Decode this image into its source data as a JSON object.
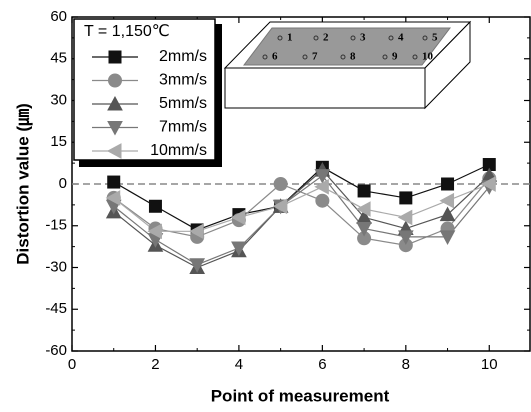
{
  "chart_data": {
    "type": "line",
    "xlabel": "Point of measurement",
    "ylabel": "Distortion value (㎛)",
    "legend_title": "T = 1,150℃",
    "x": [
      1,
      2,
      3,
      4,
      5,
      6,
      7,
      8,
      9,
      10
    ],
    "series": [
      {
        "name": "2mm/s",
        "color": "#111111",
        "marker": "square",
        "values": [
          0.7,
          -8,
          -16.5,
          -11,
          -8,
          6,
          -2.5,
          -5,
          0,
          7
        ]
      },
      {
        "name": "3mm/s",
        "color": "#8a8a8a",
        "marker": "circle",
        "values": [
          -5,
          -16,
          -19,
          -13,
          0,
          -6,
          -19.5,
          -22,
          -16,
          2
        ]
      },
      {
        "name": "5mm/s",
        "color": "#555555",
        "marker": "triangle-up",
        "values": [
          -10,
          -22,
          -30,
          -24,
          -8,
          5,
          -12,
          -16,
          -11,
          3
        ]
      },
      {
        "name": "7mm/s",
        "color": "#777777",
        "marker": "triangle-down",
        "values": [
          -8,
          -20,
          -29,
          -23,
          -8,
          3,
          -16,
          -19,
          -19,
          -1
        ]
      },
      {
        "name": "10mm/s",
        "color": "#aaaaaa",
        "marker": "triangle-left",
        "values": [
          -5,
          -17,
          -17,
          -12,
          -8,
          -1,
          -9,
          -12,
          -6,
          0
        ]
      }
    ],
    "xlim": [
      0,
      11
    ],
    "xticks": [
      0,
      2,
      4,
      6,
      8,
      10
    ],
    "ylim": [
      -60,
      60
    ],
    "yticks": [
      -60,
      -45,
      -30,
      -15,
      0,
      15,
      30,
      45,
      60
    ],
    "hline": 0,
    "inset_labels": [
      "1",
      "2",
      "3",
      "4",
      "5",
      "6",
      "7",
      "8",
      "9",
      "10"
    ]
  }
}
